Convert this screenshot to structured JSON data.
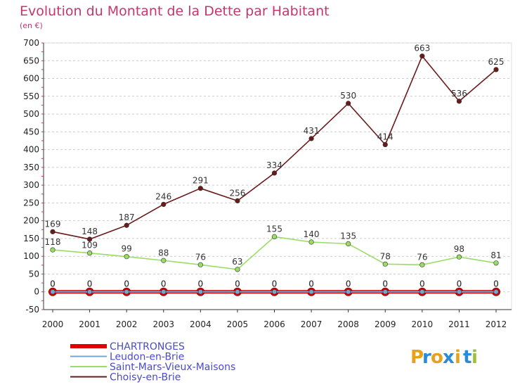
{
  "chart_data": {
    "type": "line",
    "title": "Evolution du Montant de la Dette par Habitant",
    "subtitle": "(en €)",
    "ylim": [
      -50,
      700
    ],
    "yticks": [
      -50,
      0,
      50,
      100,
      150,
      200,
      250,
      300,
      350,
      400,
      450,
      500,
      550,
      600,
      650,
      700
    ],
    "grid": "horizontal-dashed",
    "legend_position": "bottom-left",
    "x": [
      "2000",
      "2001",
      "2002",
      "2003",
      "2004",
      "2005",
      "2006",
      "2007",
      "2008",
      "2009",
      "2010",
      "2011",
      "2012"
    ],
    "series": [
      {
        "name": "CHARTRONGES",
        "color": "#e00000",
        "values": [
          0,
          0,
          0,
          0,
          0,
          0,
          0,
          0,
          0,
          0,
          0,
          0,
          0
        ]
      },
      {
        "name": "Leudon-en-Brie",
        "color": "#6fa8d6",
        "values": [
          0,
          0,
          0,
          0,
          0,
          0,
          0,
          0,
          0,
          0,
          0,
          0,
          0
        ]
      },
      {
        "name": "Saint-Mars-Vieux-Maisons",
        "color": "#99dd66",
        "values": [
          118,
          109,
          99,
          88,
          76,
          63,
          155,
          140,
          135,
          78,
          76,
          98,
          81
        ]
      },
      {
        "name": "Choisy-en-Brie",
        "color": "#6b1a1a",
        "values": [
          169,
          148,
          187,
          246,
          291,
          256,
          334,
          431,
          530,
          414,
          663,
          536,
          625
        ]
      }
    ]
  },
  "logo": {
    "letters": [
      "P",
      "r",
      "o",
      "x",
      "i",
      "t",
      "i"
    ],
    "colors": [
      "#e8a21a",
      "#2a8bd8",
      "#e8a21a",
      "#2a8bd8",
      "#e8a21a",
      "#2a8bd8",
      "#99c23a"
    ]
  }
}
